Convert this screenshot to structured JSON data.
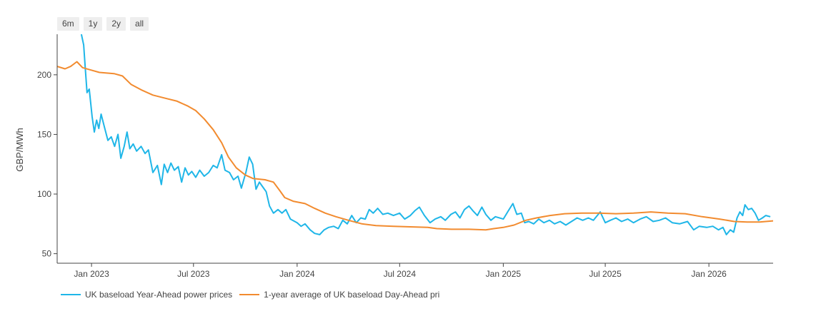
{
  "range_buttons": [
    "6m",
    "1y",
    "2y",
    "all"
  ],
  "colors": {
    "series_ya": "#1fb6e8",
    "series_da": "#f28b2f"
  },
  "chart_data": {
    "type": "line",
    "ylabel": "GBP/MWh",
    "xlabel": "",
    "ylim": [
      42,
      234
    ],
    "xlim": [
      "2022-11-01",
      "2026-04-25"
    ],
    "y_ticks": [
      50,
      100,
      150,
      200
    ],
    "x_ticks": [
      {
        "date": "2023-01-01",
        "label": "Jan 2023"
      },
      {
        "date": "2023-07-01",
        "label": "Jul 2023"
      },
      {
        "date": "2024-01-01",
        "label": "Jan 2024"
      },
      {
        "date": "2024-07-01",
        "label": "Jul 2024"
      },
      {
        "date": "2025-01-01",
        "label": "Jan 2025"
      },
      {
        "date": "2025-07-01",
        "label": "Jul 2025"
      },
      {
        "date": "2026-01-01",
        "label": "Jan 2026"
      }
    ],
    "series": [
      {
        "name": "UK baseload Year-Ahead power prices",
        "points": [
          [
            "2022-12-14",
            234
          ],
          [
            "2022-12-18",
            225
          ],
          [
            "2022-12-21",
            205
          ],
          [
            "2022-12-24",
            185
          ],
          [
            "2022-12-28",
            188
          ],
          [
            "2023-01-02",
            165
          ],
          [
            "2023-01-06",
            152
          ],
          [
            "2023-01-10",
            162
          ],
          [
            "2023-01-14",
            155
          ],
          [
            "2023-01-18",
            167
          ],
          [
            "2023-01-24",
            156
          ],
          [
            "2023-01-30",
            145
          ],
          [
            "2023-02-05",
            148
          ],
          [
            "2023-02-11",
            140
          ],
          [
            "2023-02-17",
            150
          ],
          [
            "2023-02-22",
            130
          ],
          [
            "2023-02-28",
            140
          ],
          [
            "2023-03-05",
            152
          ],
          [
            "2023-03-10",
            138
          ],
          [
            "2023-03-16",
            142
          ],
          [
            "2023-03-22",
            136
          ],
          [
            "2023-03-30",
            140
          ],
          [
            "2023-04-06",
            134
          ],
          [
            "2023-04-12",
            137
          ],
          [
            "2023-04-20",
            118
          ],
          [
            "2023-04-28",
            124
          ],
          [
            "2023-05-05",
            108
          ],
          [
            "2023-05-10",
            125
          ],
          [
            "2023-05-16",
            118
          ],
          [
            "2023-05-22",
            126
          ],
          [
            "2023-05-28",
            120
          ],
          [
            "2023-06-04",
            123
          ],
          [
            "2023-06-10",
            110
          ],
          [
            "2023-06-16",
            122
          ],
          [
            "2023-06-22",
            116
          ],
          [
            "2023-06-28",
            119
          ],
          [
            "2023-07-05",
            114
          ],
          [
            "2023-07-12",
            120
          ],
          [
            "2023-07-20",
            115
          ],
          [
            "2023-07-28",
            118
          ],
          [
            "2023-08-05",
            124
          ],
          [
            "2023-08-12",
            122
          ],
          [
            "2023-08-20",
            133
          ],
          [
            "2023-08-26",
            120
          ],
          [
            "2023-09-03",
            118
          ],
          [
            "2023-09-10",
            112
          ],
          [
            "2023-09-18",
            115
          ],
          [
            "2023-09-24",
            105
          ],
          [
            "2023-10-02",
            118
          ],
          [
            "2023-10-08",
            131
          ],
          [
            "2023-10-14",
            125
          ],
          [
            "2023-10-20",
            104
          ],
          [
            "2023-10-26",
            110
          ],
          [
            "2023-11-01",
            106
          ],
          [
            "2023-11-07",
            102
          ],
          [
            "2023-11-13",
            90
          ],
          [
            "2023-11-20",
            84
          ],
          [
            "2023-11-28",
            87
          ],
          [
            "2023-12-05",
            84
          ],
          [
            "2023-12-12",
            87
          ],
          [
            "2023-12-20",
            79
          ],
          [
            "2024-01-01",
            76
          ],
          [
            "2024-01-08",
            73
          ],
          [
            "2024-01-15",
            75
          ],
          [
            "2024-01-24",
            70
          ],
          [
            "2024-02-01",
            67
          ],
          [
            "2024-02-10",
            66
          ],
          [
            "2024-02-18",
            70
          ],
          [
            "2024-02-26",
            72
          ],
          [
            "2024-03-06",
            73
          ],
          [
            "2024-03-14",
            71
          ],
          [
            "2024-03-22",
            78
          ],
          [
            "2024-03-30",
            75
          ],
          [
            "2024-04-07",
            82
          ],
          [
            "2024-04-15",
            76
          ],
          [
            "2024-04-23",
            80
          ],
          [
            "2024-05-01",
            79
          ],
          [
            "2024-05-08",
            87
          ],
          [
            "2024-05-15",
            84
          ],
          [
            "2024-05-23",
            88
          ],
          [
            "2024-06-01",
            83
          ],
          [
            "2024-06-10",
            84
          ],
          [
            "2024-06-20",
            82
          ],
          [
            "2024-07-01",
            84
          ],
          [
            "2024-07-10",
            79
          ],
          [
            "2024-07-20",
            82
          ],
          [
            "2024-07-28",
            86
          ],
          [
            "2024-08-05",
            89
          ],
          [
            "2024-08-14",
            82
          ],
          [
            "2024-08-24",
            76
          ],
          [
            "2024-09-02",
            79
          ],
          [
            "2024-09-12",
            81
          ],
          [
            "2024-09-20",
            78
          ],
          [
            "2024-09-30",
            83
          ],
          [
            "2024-10-08",
            85
          ],
          [
            "2024-10-16",
            80
          ],
          [
            "2024-10-24",
            87
          ],
          [
            "2024-11-01",
            90
          ],
          [
            "2024-11-08",
            86
          ],
          [
            "2024-11-16",
            82
          ],
          [
            "2024-11-24",
            89
          ],
          [
            "2024-12-01",
            83
          ],
          [
            "2024-12-10",
            78
          ],
          [
            "2024-12-18",
            81
          ],
          [
            "2025-01-01",
            79
          ],
          [
            "2025-01-10",
            86
          ],
          [
            "2025-01-18",
            92
          ],
          [
            "2025-01-25",
            83
          ],
          [
            "2025-02-02",
            84
          ],
          [
            "2025-02-08",
            76
          ],
          [
            "2025-02-15",
            77
          ],
          [
            "2025-02-24",
            75
          ],
          [
            "2025-03-05",
            79
          ],
          [
            "2025-03-14",
            76
          ],
          [
            "2025-03-24",
            78
          ],
          [
            "2025-04-02",
            75
          ],
          [
            "2025-04-12",
            77
          ],
          [
            "2025-04-22",
            74
          ],
          [
            "2025-05-02",
            77
          ],
          [
            "2025-05-12",
            80
          ],
          [
            "2025-05-22",
            78
          ],
          [
            "2025-06-01",
            80
          ],
          [
            "2025-06-10",
            78
          ],
          [
            "2025-06-22",
            85
          ],
          [
            "2025-07-01",
            76
          ],
          [
            "2025-07-10",
            78
          ],
          [
            "2025-07-20",
            80
          ],
          [
            "2025-07-30",
            77
          ],
          [
            "2025-08-10",
            79
          ],
          [
            "2025-08-20",
            76
          ],
          [
            "2025-09-01",
            79
          ],
          [
            "2025-09-12",
            81
          ],
          [
            "2025-09-24",
            77
          ],
          [
            "2025-10-05",
            78
          ],
          [
            "2025-10-16",
            80
          ],
          [
            "2025-10-28",
            76
          ],
          [
            "2025-11-10",
            75
          ],
          [
            "2025-11-24",
            77
          ],
          [
            "2025-12-05",
            70
          ],
          [
            "2025-12-15",
            73
          ],
          [
            "2025-12-28",
            72
          ],
          [
            "2026-01-08",
            73
          ],
          [
            "2026-01-18",
            70
          ],
          [
            "2026-01-26",
            72
          ],
          [
            "2026-02-01",
            66
          ],
          [
            "2026-02-08",
            70
          ],
          [
            "2026-02-14",
            68
          ],
          [
            "2026-02-20",
            80
          ],
          [
            "2026-02-25",
            85
          ],
          [
            "2026-03-02",
            82
          ],
          [
            "2026-03-06",
            91
          ],
          [
            "2026-03-12",
            87
          ],
          [
            "2026-03-18",
            88
          ],
          [
            "2026-03-24",
            84
          ],
          [
            "2026-03-30",
            78
          ],
          [
            "2026-04-06",
            80
          ],
          [
            "2026-04-12",
            82
          ],
          [
            "2026-04-20",
            81
          ]
        ]
      },
      {
        "name": "1-year average of UK baseload Day-Ahead pri",
        "points": [
          [
            "2022-11-01",
            207
          ],
          [
            "2022-11-15",
            205
          ],
          [
            "2022-11-25",
            207
          ],
          [
            "2022-12-06",
            211
          ],
          [
            "2022-12-16",
            206
          ],
          [
            "2022-12-31",
            204
          ],
          [
            "2023-01-15",
            202
          ],
          [
            "2023-02-10",
            201
          ],
          [
            "2023-02-25",
            199
          ],
          [
            "2023-03-12",
            192
          ],
          [
            "2023-04-01",
            187
          ],
          [
            "2023-04-20",
            183
          ],
          [
            "2023-05-15",
            180
          ],
          [
            "2023-06-01",
            178
          ],
          [
            "2023-06-20",
            174
          ],
          [
            "2023-07-05",
            170
          ],
          [
            "2023-07-20",
            163
          ],
          [
            "2023-08-05",
            154
          ],
          [
            "2023-08-20",
            143
          ],
          [
            "2023-09-01",
            131
          ],
          [
            "2023-09-15",
            122
          ],
          [
            "2023-10-01",
            116
          ],
          [
            "2023-10-15",
            113
          ],
          [
            "2023-11-05",
            112
          ],
          [
            "2023-11-20",
            110
          ],
          [
            "2023-12-01",
            103
          ],
          [
            "2023-12-10",
            97
          ],
          [
            "2023-12-25",
            94
          ],
          [
            "2024-01-15",
            92
          ],
          [
            "2024-02-01",
            88
          ],
          [
            "2024-02-20",
            84
          ],
          [
            "2024-03-10",
            81
          ],
          [
            "2024-04-01",
            78
          ],
          [
            "2024-04-25",
            75
          ],
          [
            "2024-05-20",
            73.5
          ],
          [
            "2024-06-20",
            73
          ],
          [
            "2024-07-20",
            72.5
          ],
          [
            "2024-08-20",
            72
          ],
          [
            "2024-09-05",
            71
          ],
          [
            "2024-10-01",
            70.5
          ],
          [
            "2024-11-01",
            70.5
          ],
          [
            "2024-12-01",
            70
          ],
          [
            "2024-12-15",
            71
          ],
          [
            "2025-01-01",
            72
          ],
          [
            "2025-01-20",
            74
          ],
          [
            "2025-02-10",
            78
          ],
          [
            "2025-03-01",
            80
          ],
          [
            "2025-03-25",
            82
          ],
          [
            "2025-04-20",
            83.5
          ],
          [
            "2025-05-20",
            84
          ],
          [
            "2025-06-20",
            84
          ],
          [
            "2025-07-20",
            83.5
          ],
          [
            "2025-08-20",
            84
          ],
          [
            "2025-09-20",
            85
          ],
          [
            "2025-10-20",
            84
          ],
          [
            "2025-11-20",
            83.5
          ],
          [
            "2025-12-20",
            81
          ],
          [
            "2026-01-20",
            79
          ],
          [
            "2026-02-15",
            77
          ],
          [
            "2026-03-10",
            76.5
          ],
          [
            "2026-04-01",
            76.5
          ],
          [
            "2026-04-25",
            77.5
          ]
        ]
      }
    ],
    "legend": "bottom-left",
    "grid": false
  }
}
